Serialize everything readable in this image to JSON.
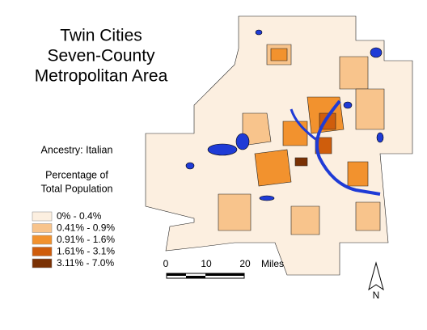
{
  "title": [
    "Twin Cities",
    "Seven-County",
    "Metropolitan Area"
  ],
  "subtitle": "Ancestry: Italian",
  "legend": {
    "title": [
      "Percentage of",
      "Total Population"
    ],
    "items": [
      {
        "label": "0% - 0.4%",
        "color": "#fcefe0"
      },
      {
        "label": "0.41% - 0.9%",
        "color": "#f8c48c"
      },
      {
        "label": "0.91% - 1.6%",
        "color": "#f2922e"
      },
      {
        "label": "1.61% - 3.1%",
        "color": "#cf5d0c"
      },
      {
        "label": "3.11% - 7.0%",
        "color": "#7a3104"
      }
    ]
  },
  "scale_bar": {
    "ticks": [
      "0",
      "10",
      "20"
    ],
    "unit": "Miles"
  },
  "north_arrow": "N"
}
